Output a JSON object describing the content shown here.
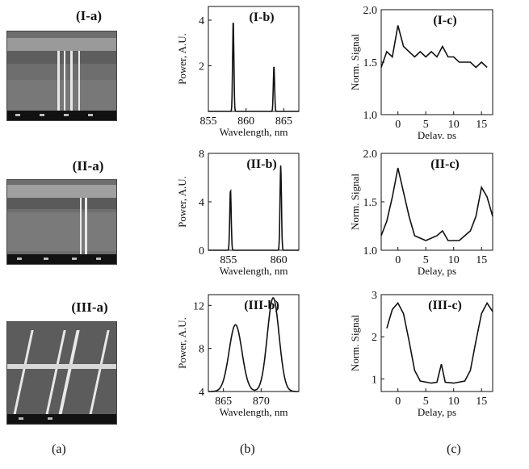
{
  "captions": {
    "sem": [
      "(I-a)",
      "(II-a)",
      "(III-a)"
    ],
    "columns": [
      "(a)",
      "(b)",
      "(c)"
    ]
  },
  "colors": {
    "trace": "#111111",
    "sem_bg": "#6e6e6e",
    "sem_light": "#e8e8e8"
  },
  "chart_data": [
    {
      "id": "I-b",
      "type": "line",
      "title": "(I-b)",
      "xlabel": "Wavelength, nm",
      "ylabel": "Power, A.U.",
      "xlim": [
        855,
        867
      ],
      "ylim": [
        0,
        4.6
      ],
      "xticks": [
        855,
        860,
        865
      ],
      "yticks": [
        2,
        4
      ],
      "peaks": [
        {
          "x": 858.3,
          "y": 4.0,
          "w": 0.12
        },
        {
          "x": 863.7,
          "y": 2.0,
          "w": 0.12
        }
      ],
      "series": [
        {
          "values": []
        }
      ]
    },
    {
      "id": "I-c",
      "type": "line",
      "title": "(I-c)",
      "xlabel": "Delay, ps",
      "ylabel": "Norm. Signal",
      "xlim": [
        -3,
        17
      ],
      "ylim": [
        1.0,
        2.0
      ],
      "xticks": [
        0,
        5,
        10,
        15
      ],
      "yticks": [
        1.0,
        1.5,
        2.0
      ],
      "series": [
        {
          "values": [
            [
              -3,
              1.45
            ],
            [
              -2,
              1.6
            ],
            [
              -1,
              1.55
            ],
            [
              0,
              1.85
            ],
            [
              1,
              1.65
            ],
            [
              2,
              1.6
            ],
            [
              3,
              1.55
            ],
            [
              4,
              1.6
            ],
            [
              5,
              1.55
            ],
            [
              6,
              1.6
            ],
            [
              7,
              1.55
            ],
            [
              8,
              1.65
            ],
            [
              9,
              1.55
            ],
            [
              10,
              1.55
            ],
            [
              11,
              1.5
            ],
            [
              12,
              1.5
            ],
            [
              13,
              1.5
            ],
            [
              14,
              1.45
            ],
            [
              15,
              1.5
            ],
            [
              16,
              1.45
            ]
          ]
        }
      ]
    },
    {
      "id": "II-b",
      "type": "line",
      "title": "(II-b)",
      "xlabel": "Wavelength, nm",
      "ylabel": "Power, A.U.",
      "xlim": [
        853,
        862
      ],
      "ylim": [
        0,
        8
      ],
      "xticks": [
        855,
        860
      ],
      "yticks": [
        0,
        4,
        8
      ],
      "peaks": [
        {
          "x": 855.2,
          "y": 5.0,
          "w": 0.1
        },
        {
          "x": 860.2,
          "y": 7.0,
          "w": 0.1
        }
      ],
      "series": [
        {
          "values": []
        }
      ]
    },
    {
      "id": "II-c",
      "type": "line",
      "title": "(II-c)",
      "xlabel": "Delay, ps",
      "ylabel": "Norm. Signal",
      "xlim": [
        -3,
        17
      ],
      "ylim": [
        1.0,
        2.0
      ],
      "xticks": [
        0,
        5,
        10,
        15
      ],
      "yticks": [
        1.0,
        1.5,
        2.0
      ],
      "series": [
        {
          "values": [
            [
              -3,
              1.15
            ],
            [
              -2,
              1.3
            ],
            [
              -1,
              1.55
            ],
            [
              0,
              1.85
            ],
            [
              1,
              1.6
            ],
            [
              2,
              1.35
            ],
            [
              3,
              1.15
            ],
            [
              5,
              1.1
            ],
            [
              7,
              1.15
            ],
            [
              8,
              1.2
            ],
            [
              9,
              1.1
            ],
            [
              11,
              1.1
            ],
            [
              12,
              1.15
            ],
            [
              13,
              1.2
            ],
            [
              14,
              1.35
            ],
            [
              15,
              1.65
            ],
            [
              16,
              1.55
            ],
            [
              17,
              1.35
            ]
          ]
        }
      ]
    },
    {
      "id": "III-b",
      "type": "line",
      "title": "(III-b)",
      "xlabel": "Wavelength, nm",
      "ylabel": "Power, A.U.",
      "xlim": [
        863,
        875
      ],
      "ylim": [
        4,
        13
      ],
      "xticks": [
        865,
        870
      ],
      "yticks": [
        4,
        8,
        12
      ],
      "peaks": [
        {
          "x": 866.6,
          "y": 10.2,
          "w": 1.2
        },
        {
          "x": 871.6,
          "y": 12.7,
          "w": 1.1
        }
      ],
      "series": [
        {
          "values": []
        }
      ]
    },
    {
      "id": "III-c",
      "type": "line",
      "title": "(III-c)",
      "xlabel": "Delay, ps",
      "ylabel": "Norm. Signal",
      "xlim": [
        -3,
        17
      ],
      "ylim": [
        0.7,
        3.0
      ],
      "xticks": [
        0,
        5,
        10,
        15
      ],
      "yticks": [
        1,
        2,
        3
      ],
      "series": [
        {
          "values": [
            [
              -2,
              2.2
            ],
            [
              -1,
              2.65
            ],
            [
              0,
              2.8
            ],
            [
              1,
              2.55
            ],
            [
              2,
              1.9
            ],
            [
              3,
              1.2
            ],
            [
              4,
              0.95
            ],
            [
              6,
              0.9
            ],
            [
              7,
              0.92
            ],
            [
              7.8,
              1.35
            ],
            [
              8.5,
              0.92
            ],
            [
              10,
              0.9
            ],
            [
              12,
              0.95
            ],
            [
              13,
              1.2
            ],
            [
              14,
              1.9
            ],
            [
              15,
              2.55
            ],
            [
              16,
              2.8
            ],
            [
              17,
              2.6
            ]
          ]
        }
      ]
    }
  ]
}
